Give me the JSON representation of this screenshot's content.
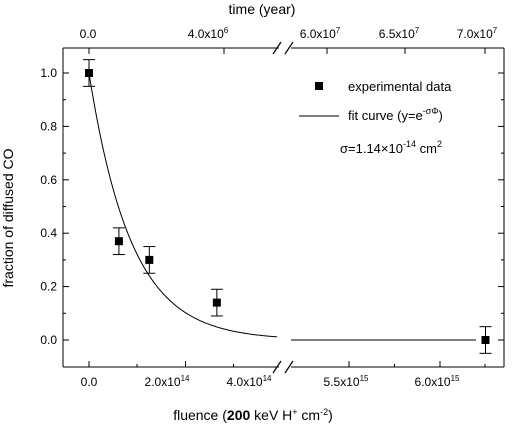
{
  "chart_data": {
    "type": "scatter",
    "title": "",
    "xlabel_bottom": {
      "prefix": "fluence (",
      "bold": "200",
      "mid": " keV H",
      "sup1": "+",
      "mid2": " cm",
      "sup2": "-2",
      "suffix": ")"
    },
    "xlabel_top": "time (year)",
    "ylabel": "fraction of diffused CO",
    "ylim": [
      -0.1,
      1.1
    ],
    "y_ticks": [
      "0.0",
      "0.2",
      "0.4",
      "0.6",
      "0.8",
      "1.0"
    ],
    "x_broken_axis": true,
    "bottom_tick_labels": [
      {
        "mant": "0.0",
        "exp": ""
      },
      {
        "mant": "2.0x10",
        "exp": "14"
      },
      {
        "mant": "4.0x10",
        "exp": "14"
      },
      {
        "mant": "5.5x10",
        "exp": "15"
      },
      {
        "mant": "6.0x10",
        "exp": "15"
      }
    ],
    "top_tick_labels": [
      {
        "mant": "0.0",
        "exp": ""
      },
      {
        "mant": "4.0x10",
        "exp": "6"
      },
      {
        "mant": "6.0x10",
        "exp": "7"
      },
      {
        "mant": "6.5x10",
        "exp": "7"
      },
      {
        "mant": "7.0x10",
        "exp": "7"
      }
    ],
    "series": [
      {
        "name": "experimental data",
        "kind": "points",
        "points": [
          {
            "x": 0.0,
            "y": 1.0,
            "err": 0.05
          },
          {
            "x": 62000000000000.0,
            "y": 0.37,
            "err": 0.05
          },
          {
            "x": 125000000000000.0,
            "y": 0.3,
            "err": 0.05
          },
          {
            "x": 265000000000000.0,
            "y": 0.14,
            "err": 0.05
          },
          {
            "x": 6250000000000000.0,
            "y": 0.0,
            "err": 0.05
          }
        ]
      },
      {
        "name": "fit curve (y=e",
        "name_sup": "-σΦ",
        "name_suffix": ")",
        "kind": "line"
      }
    ],
    "annotation": {
      "prefix": "σ=1.14×10",
      "sup": "-14",
      "suffix": " cm",
      "sup2": "2"
    },
    "sigma": 1.14e-14,
    "legend_position": "top-right"
  }
}
